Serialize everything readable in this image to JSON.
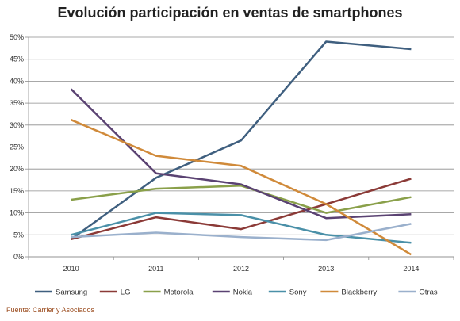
{
  "chart_data": {
    "type": "line",
    "title": "Evolución participación en ventas de smartphones",
    "categories": [
      "2010",
      "2011",
      "2012",
      "2013",
      "2014"
    ],
    "ylim": [
      0,
      50
    ],
    "y_ticks": [
      "0%",
      "5%",
      "10%",
      "15%",
      "20%",
      "25%",
      "30%",
      "35%",
      "40%",
      "45%",
      "50%"
    ],
    "grid": "horizontal",
    "legend_position": "bottom",
    "series": [
      {
        "name": "Samsung",
        "color": "#3f5f7f",
        "values": [
          4.0,
          18.0,
          26.5,
          49.0,
          47.3
        ]
      },
      {
        "name": "LG",
        "color": "#8b3a37",
        "values": [
          4.0,
          9.0,
          6.3,
          12.0,
          17.8
        ]
      },
      {
        "name": "Motorola",
        "color": "#8aa04a",
        "values": [
          13.0,
          15.5,
          16.2,
          10.0,
          13.6
        ]
      },
      {
        "name": "Nokia",
        "color": "#5a4272",
        "values": [
          38.2,
          19.0,
          16.5,
          8.8,
          9.7
        ]
      },
      {
        "name": "Sony",
        "color": "#4a90a8",
        "values": [
          5.0,
          10.0,
          9.5,
          5.0,
          3.2
        ]
      },
      {
        "name": "Blackberry",
        "color": "#d08a3a",
        "values": [
          31.2,
          23.0,
          20.7,
          12.0,
          0.5
        ]
      },
      {
        "name": "Otras",
        "color": "#9ab0cc",
        "values": [
          4.5,
          5.5,
          4.5,
          3.8,
          7.5
        ]
      }
    ],
    "source": "Fuente: Carrier y Asociados"
  }
}
